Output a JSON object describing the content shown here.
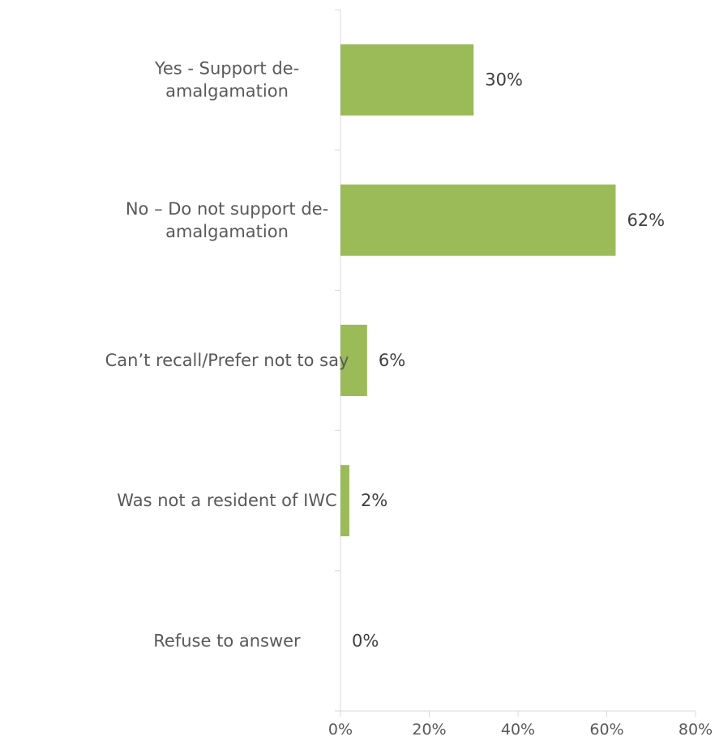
{
  "chart_data": {
    "type": "bar",
    "orientation": "horizontal",
    "categories": [
      [
        "Yes - Support de-",
        "amalgamation"
      ],
      [
        "No – Do not support de-",
        "amalgamation"
      ],
      [
        "Can’t recall/Prefer not to say"
      ],
      [
        "Was not a resident of IWC"
      ],
      [
        "Refuse to answer"
      ]
    ],
    "values": [
      30,
      62,
      6,
      2,
      0
    ],
    "data_labels": [
      "30%",
      "62%",
      "6%",
      "2%",
      "0%"
    ],
    "xlim": [
      0,
      80
    ],
    "x_ticks": [
      "0%",
      "20%",
      "40%",
      "60%",
      "80%"
    ],
    "bar_color": "#9bbb59",
    "grid": false,
    "legend": "none",
    "title": "",
    "xlabel": "",
    "ylabel": ""
  }
}
